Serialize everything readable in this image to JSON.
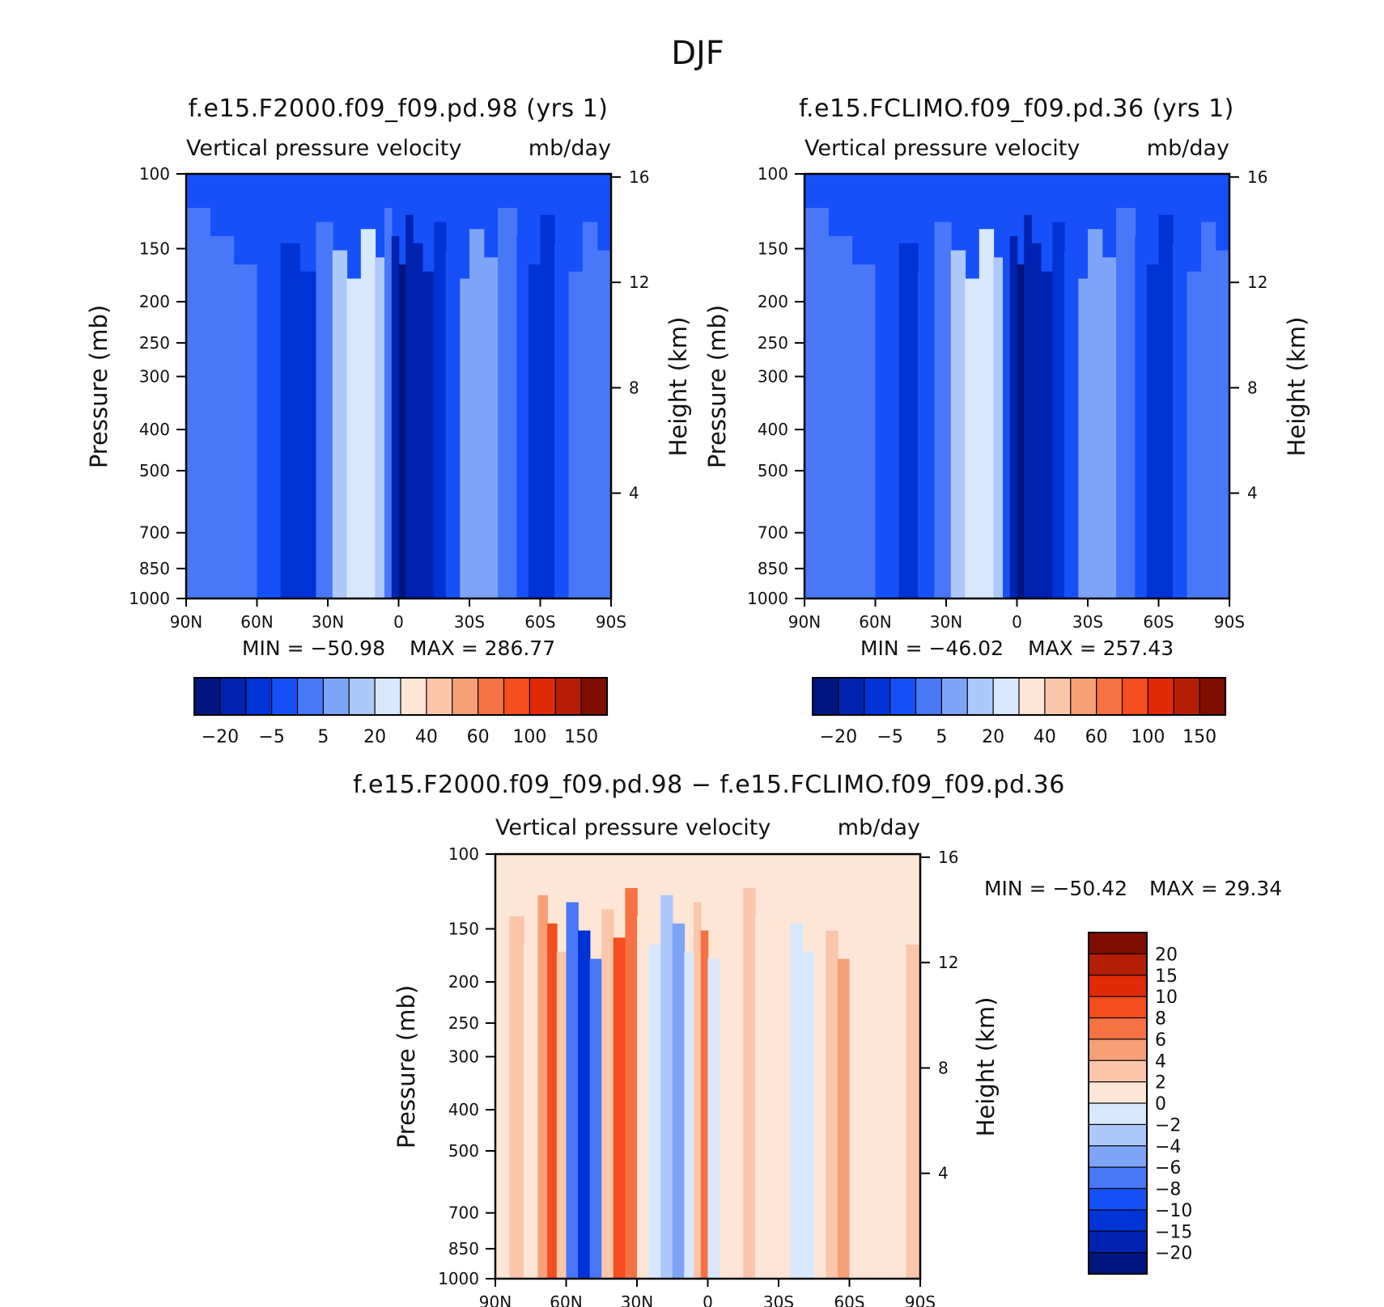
{
  "figure": {
    "title": "DJF"
  },
  "colors": {
    "panel_palette": [
      "#00157f",
      "#0022b0",
      "#0033d6",
      "#1650f8",
      "#4878f8",
      "#7ea4f8",
      "#adc8fb",
      "#d7e8fd",
      "#fde6d5",
      "#fbc6aa",
      "#f7a078",
      "#f67245",
      "#f44d1e",
      "#e02a08",
      "#b31e04",
      "#7f0d00"
    ],
    "diff_palette": [
      "#00157f",
      "#0022b0",
      "#0033d6",
      "#1650f8",
      "#4878f8",
      "#7ea4f8",
      "#adc8fb",
      "#d7e8fd",
      "#fde6d5",
      "#fbc6aa",
      "#f7a078",
      "#f67245",
      "#f44d1e",
      "#e02a08",
      "#b31e04",
      "#7f0d00"
    ]
  },
  "panels": [
    {
      "id": "f2000",
      "title": "f.e15.F2000.f09_f09.pd.98 (yrs 1)",
      "subtitle": "Vertical pressure velocity",
      "units": "mb/day",
      "min_label": "MIN = −50.98",
      "max_label": "MAX = 286.77"
    },
    {
      "id": "fclimo",
      "title": "f.e15.FCLIMO.f09_f09.pd.36 (yrs 1)",
      "subtitle": "Vertical pressure velocity",
      "units": "mb/day",
      "min_label": "MIN = −46.02",
      "max_label": "MAX = 257.43"
    },
    {
      "id": "diff",
      "title": "f.e15.F2000.f09_f09.pd.98 − f.e15.FCLIMO.f09_f09.pd.36",
      "subtitle": "Vertical pressure velocity",
      "units": "mb/day",
      "min_label": "MIN = −50.42",
      "max_label": "MAX = 29.34"
    }
  ],
  "chart_data": [
    {
      "type": "heatmap",
      "title": "f.e15.F2000.f09_f09.pd.98 (yrs 1)",
      "subtitle": "Vertical pressure velocity (mb/day)",
      "xlabel": "",
      "ylabel": "Pressure (mb)",
      "y2label": "Height (km)",
      "x_ticks": [
        "90N",
        "60N",
        "30N",
        "0",
        "30S",
        "60S",
        "90S"
      ],
      "x_values": [
        90,
        60,
        30,
        0,
        -30,
        -60,
        -90
      ],
      "y_ticks": [
        100,
        150,
        200,
        250,
        300,
        400,
        500,
        700,
        850,
        1000
      ],
      "y_scale": "log",
      "y2_ticks": [
        16,
        12,
        8,
        4
      ],
      "colorbar_labels": [
        "−20",
        "−5",
        "5",
        "20",
        "40",
        "60",
        "100",
        "150"
      ],
      "min": -50.98,
      "max": 286.77,
      "profile_lat": [
        90,
        80,
        70,
        60,
        50,
        42,
        35,
        28,
        22,
        16,
        10,
        6,
        3,
        0,
        -3,
        -6,
        -10,
        -15,
        -20,
        -26,
        -30,
        -36,
        -42,
        -50,
        -55,
        -60,
        -66,
        -72,
        -78,
        -84,
        -90
      ],
      "profile_level_index": [
        4,
        4,
        4,
        3,
        2,
        2,
        4,
        6,
        7,
        7,
        6,
        4,
        1,
        0,
        1,
        1,
        1,
        2,
        3,
        5,
        5,
        5,
        4,
        3,
        2,
        2,
        3,
        4,
        4,
        4,
        4
      ]
    },
    {
      "type": "heatmap",
      "title": "f.e15.FCLIMO.f09_f09.pd.36 (yrs 1)",
      "subtitle": "Vertical pressure velocity (mb/day)",
      "xlabel": "",
      "ylabel": "Pressure (mb)",
      "y2label": "Height (km)",
      "x_ticks": [
        "90N",
        "60N",
        "30N",
        "0",
        "30S",
        "60S",
        "90S"
      ],
      "x_values": [
        90,
        60,
        30,
        0,
        -30,
        -60,
        -90
      ],
      "y_ticks": [
        100,
        150,
        200,
        250,
        300,
        400,
        500,
        700,
        850,
        1000
      ],
      "y_scale": "log",
      "y2_ticks": [
        16,
        12,
        8,
        4
      ],
      "colorbar_labels": [
        "−20",
        "−5",
        "5",
        "20",
        "40",
        "60",
        "100",
        "150"
      ],
      "min": -46.02,
      "max": 257.43,
      "profile_lat": [
        90,
        80,
        70,
        60,
        50,
        42,
        35,
        28,
        22,
        16,
        10,
        6,
        3,
        0,
        -3,
        -6,
        -10,
        -15,
        -20,
        -26,
        -30,
        -36,
        -42,
        -50,
        -55,
        -60,
        -66,
        -72,
        -78,
        -84,
        -90
      ],
      "profile_level_index": [
        4,
        4,
        4,
        3,
        2,
        3,
        4,
        6,
        7,
        7,
        6,
        3,
        1,
        0,
        1,
        1,
        1,
        2,
        3,
        5,
        5,
        5,
        4,
        3,
        2,
        2,
        3,
        4,
        4,
        4,
        4
      ]
    },
    {
      "type": "heatmap",
      "title": "f.e15.F2000.f09_f09.pd.98 − f.e15.FCLIMO.f09_f09.pd.36",
      "subtitle": "Vertical pressure velocity (mb/day)",
      "xlabel": "",
      "ylabel": "Pressure (mb)",
      "y2label": "Height (km)",
      "x_ticks": [
        "90N",
        "60N",
        "30N",
        "0",
        "30S",
        "60S",
        "90S"
      ],
      "x_values": [
        90,
        60,
        30,
        0,
        -30,
        -60,
        -90
      ],
      "y_ticks": [
        100,
        150,
        200,
        250,
        300,
        400,
        500,
        700,
        850,
        1000
      ],
      "y_scale": "log",
      "y2_ticks": [
        16,
        12,
        8,
        4
      ],
      "colorbar_labels": [
        "20",
        "15",
        "10",
        "8",
        "6",
        "4",
        "2",
        "0",
        "−2",
        "−4",
        "−6",
        "−8",
        "−10",
        "−15",
        "−20"
      ],
      "min": -50.42,
      "max": 29.34,
      "profile_lat": [
        90,
        84,
        78,
        72,
        68,
        64,
        60,
        55,
        50,
        45,
        40,
        35,
        30,
        25,
        20,
        15,
        10,
        6,
        3,
        0,
        -5,
        -10,
        -15,
        -20,
        -25,
        -30,
        -35,
        -40,
        -45,
        -50,
        -55,
        -60,
        -66,
        -72,
        -78,
        -84,
        -90
      ],
      "profile_level_index": [
        8,
        9,
        8,
        10,
        12,
        9,
        4,
        2,
        4,
        9,
        12,
        11,
        8,
        7,
        6,
        5,
        7,
        9,
        11,
        7,
        8,
        8,
        9,
        8,
        8,
        8,
        7,
        7,
        8,
        9,
        10,
        8,
        8,
        8,
        8,
        9,
        9
      ]
    }
  ]
}
